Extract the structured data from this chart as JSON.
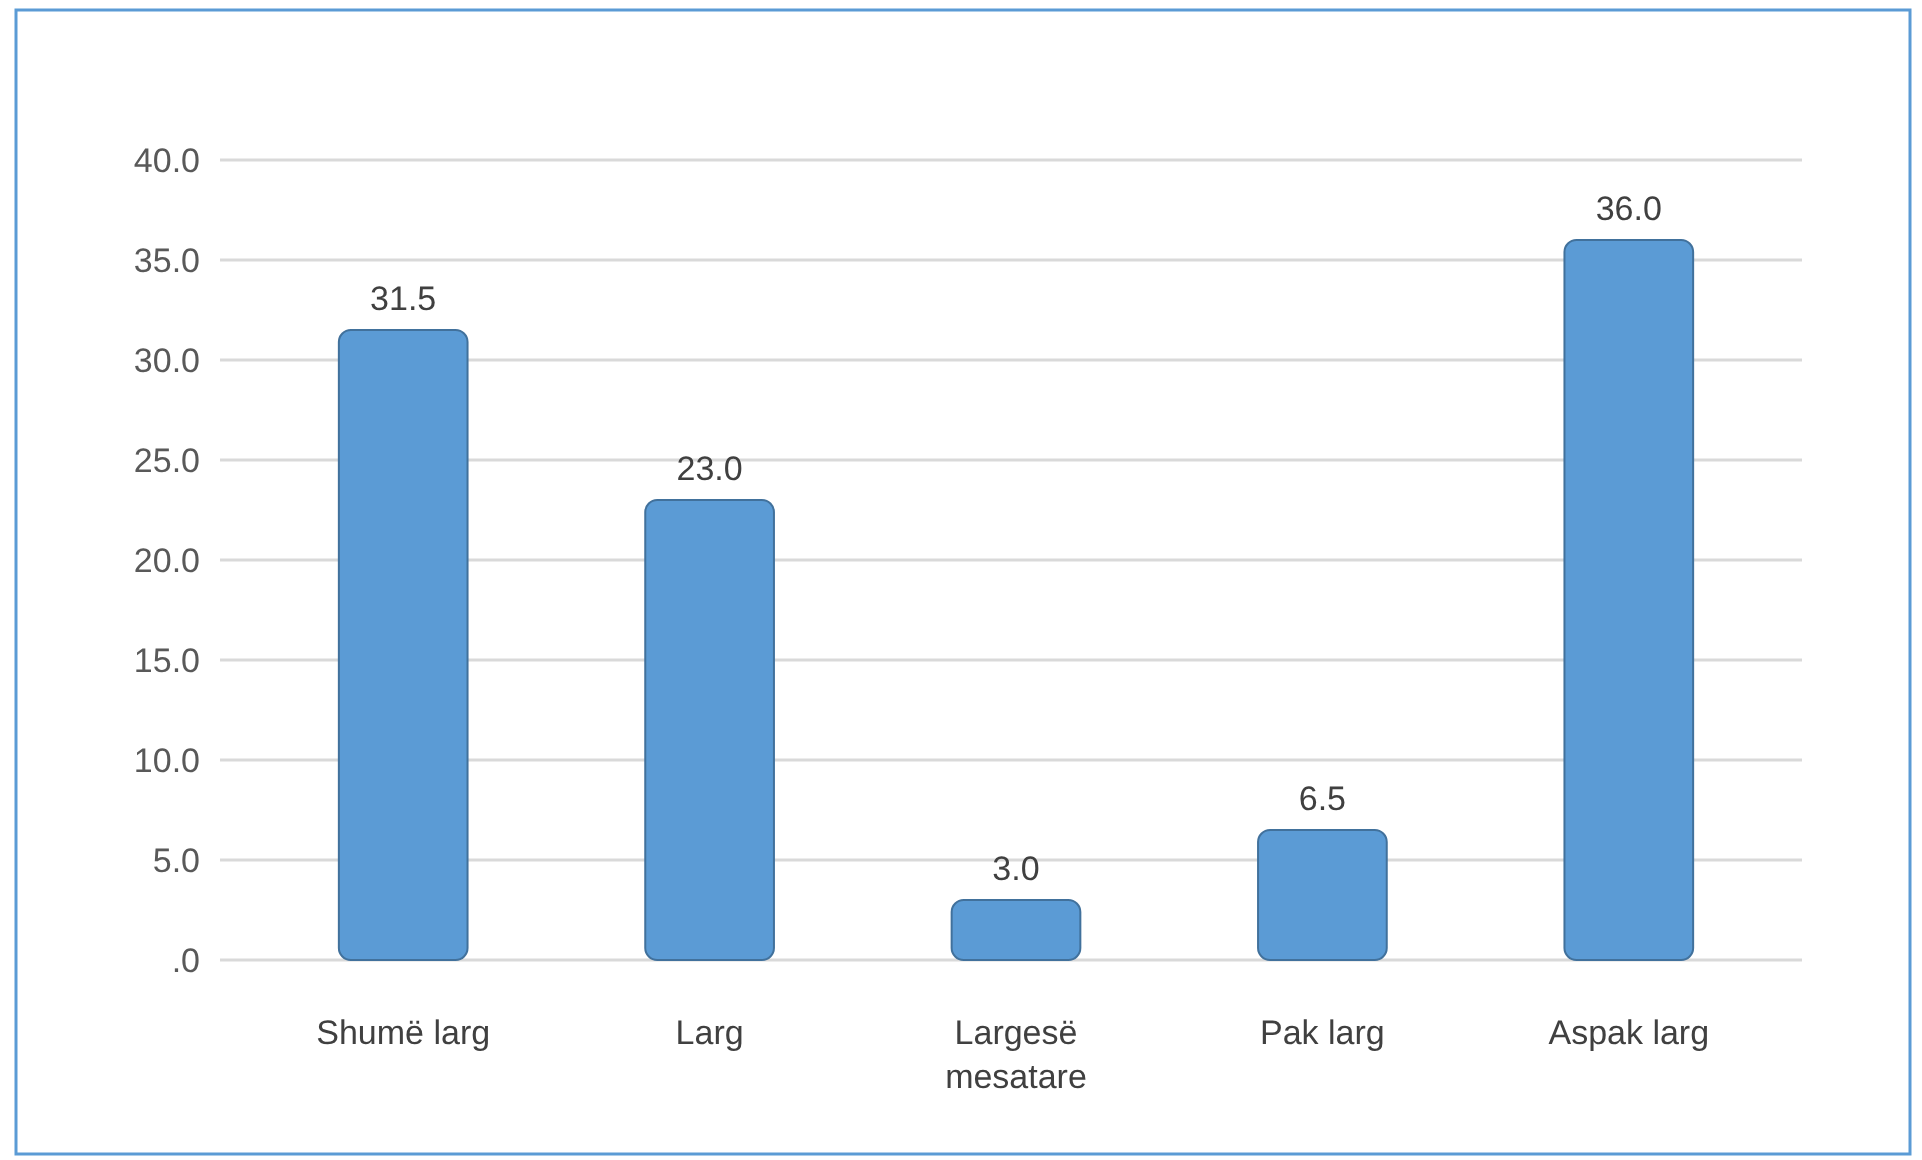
{
  "chart_data": {
    "type": "bar",
    "categories": [
      "Shumë larg",
      "Larg",
      "Largesë mesatare",
      "Pak larg",
      "Aspak larg"
    ],
    "values": [
      31.5,
      23.0,
      3.0,
      6.5,
      36.0
    ],
    "value_labels": [
      "31.5",
      "23.0",
      "3.0",
      "6.5",
      "36.0"
    ],
    "color": "#5b9bd5",
    "ylim": [
      0,
      40
    ],
    "yticks": [
      {
        "value": 0,
        "label": ".0"
      },
      {
        "value": 5,
        "label": "5.0"
      },
      {
        "value": 10,
        "label": "10.0"
      },
      {
        "value": 15,
        "label": "15.0"
      },
      {
        "value": 20,
        "label": "20.0"
      },
      {
        "value": 25,
        "label": "25.0"
      },
      {
        "value": 30,
        "label": "30.0"
      },
      {
        "value": 35,
        "label": "35.0"
      },
      {
        "value": 40,
        "label": "40.0"
      }
    ],
    "grid": "y"
  }
}
